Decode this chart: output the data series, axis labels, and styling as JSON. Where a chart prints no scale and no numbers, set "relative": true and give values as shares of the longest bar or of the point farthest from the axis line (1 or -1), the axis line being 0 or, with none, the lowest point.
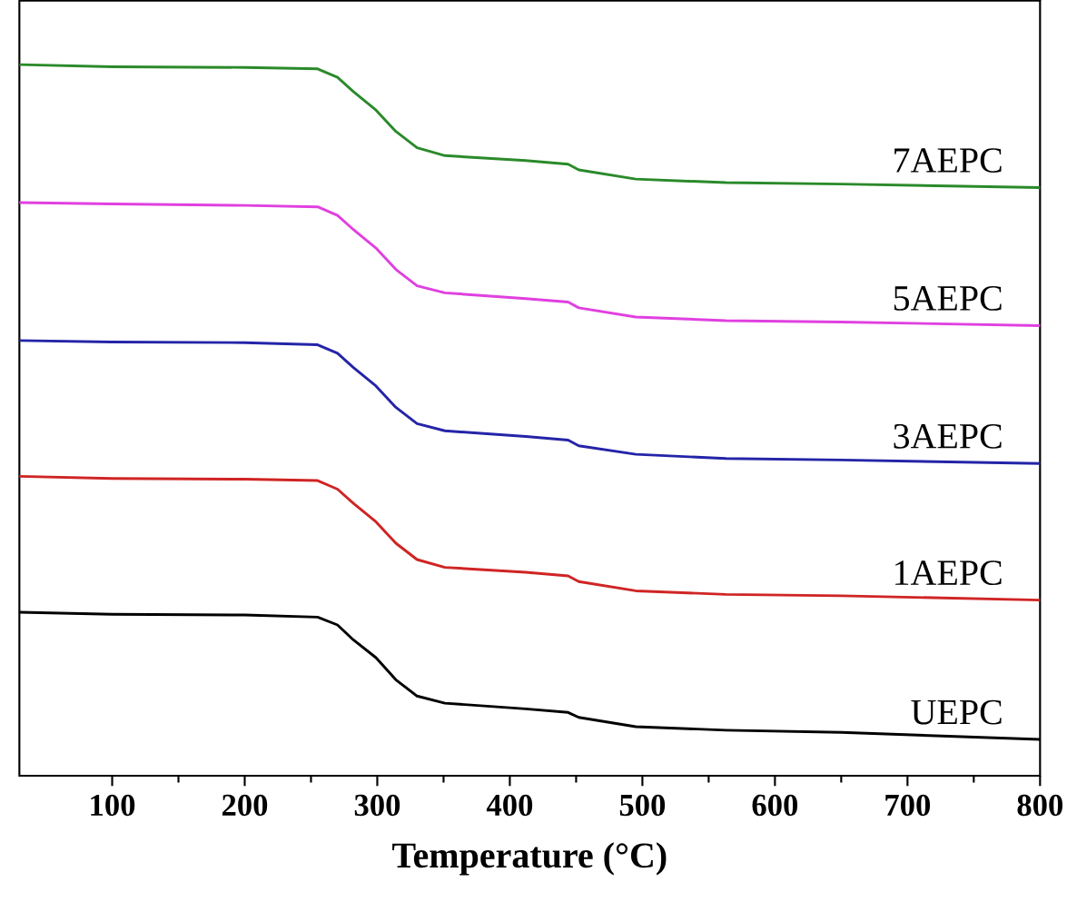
{
  "chart_data": {
    "type": "line",
    "relative": true,
    "xlabel": "Temperature (°C)",
    "xlim": [
      30,
      800
    ],
    "xticks": [
      100,
      200,
      300,
      400,
      500,
      600,
      700,
      800
    ],
    "x": [
      30,
      100,
      200,
      255,
      270,
      282,
      299,
      314,
      330,
      351,
      412,
      444,
      452,
      495,
      563,
      650,
      800
    ],
    "grid": false,
    "legend": false,
    "marker": "none",
    "line_style": "solid",
    "tick_labels": "x",
    "series": [
      {
        "name": "7AEPC",
        "color": "#2a8a2a",
        "values": [
          1,
          0.997,
          0.996,
          0.994,
          0.982,
          0.962,
          0.936,
          0.906,
          0.883,
          0.872,
          0.865,
          0.86,
          0.852,
          0.839,
          0.834,
          0.832,
          0.827
        ]
      },
      {
        "name": "5AEPC",
        "color": "#e040e0",
        "values": [
          0.806,
          0.804,
          0.802,
          0.8,
          0.788,
          0.768,
          0.742,
          0.712,
          0.689,
          0.679,
          0.671,
          0.666,
          0.658,
          0.645,
          0.64,
          0.638,
          0.633
        ]
      },
      {
        "name": "3AEPC",
        "color": "#2424a8",
        "values": [
          0.612,
          0.61,
          0.609,
          0.606,
          0.594,
          0.574,
          0.548,
          0.518,
          0.495,
          0.485,
          0.477,
          0.472,
          0.464,
          0.452,
          0.446,
          0.444,
          0.439
        ]
      },
      {
        "name": "1AEPC",
        "color": "#d02424",
        "values": [
          0.421,
          0.418,
          0.417,
          0.415,
          0.403,
          0.383,
          0.357,
          0.327,
          0.304,
          0.293,
          0.286,
          0.281,
          0.273,
          0.26,
          0.255,
          0.253,
          0.247
        ]
      },
      {
        "name": "UEPC",
        "color": "#000000",
        "values": [
          0.23,
          0.227,
          0.226,
          0.223,
          0.212,
          0.191,
          0.166,
          0.135,
          0.112,
          0.102,
          0.094,
          0.089,
          0.082,
          0.069,
          0.064,
          0.061,
          0.051
        ]
      }
    ]
  }
}
